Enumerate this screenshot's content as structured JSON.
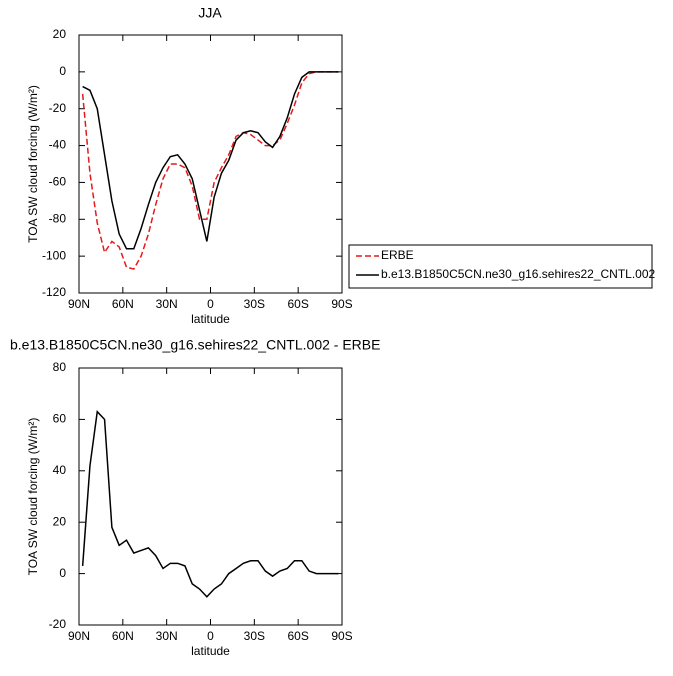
{
  "chart_data": [
    {
      "type": "line",
      "title": "JJA",
      "xlabel": "latitude",
      "ylabel": "TOA SW cloud forcing (W/m²)",
      "x": [
        87.5,
        82.5,
        77.5,
        72.5,
        67.5,
        62.5,
        57.5,
        52.5,
        47.5,
        42.5,
        37.5,
        32.5,
        27.5,
        22.5,
        17.5,
        12.5,
        7.5,
        2.5,
        -2.5,
        -7.5,
        -12.5,
        -17.5,
        -22.5,
        -27.5,
        -32.5,
        -37.5,
        -42.5,
        -47.5,
        -52.5,
        -57.5,
        -62.5,
        -67.5,
        -72.5,
        -77.5,
        -82.5,
        -87.5
      ],
      "series": [
        {
          "name": "ERBE",
          "color": "#e41a1c",
          "dash": true,
          "values": [
            -12,
            -55,
            -82,
            -98,
            -92,
            -95,
            -106,
            -107,
            -100,
            -88,
            -72,
            -58,
            -50,
            -50,
            -52,
            -62,
            -80,
            -80,
            -60,
            -52,
            -45,
            -35,
            -33,
            -34,
            -37,
            -40,
            -40,
            -37,
            -28,
            -18,
            -6,
            -1,
            0,
            0,
            0,
            0
          ]
        },
        {
          "name": "b.e13.B1850C5CN.ne30_g16.sehires22_CNTL.002",
          "color": "#000000",
          "dash": false,
          "values": [
            -8,
            -10,
            -20,
            -45,
            -70,
            -88,
            -96,
            -96,
            -85,
            -72,
            -60,
            -52,
            -46,
            -45,
            -50,
            -58,
            -75,
            -92,
            -68,
            -55,
            -48,
            -37,
            -33,
            -32,
            -33,
            -38,
            -41,
            -35,
            -25,
            -12,
            -3,
            0,
            0,
            0,
            0,
            0
          ]
        }
      ],
      "xlim": [
        90,
        -90
      ],
      "xticks": [
        {
          "value": 90,
          "label": "90N"
        },
        {
          "value": 60,
          "label": "60N"
        },
        {
          "value": 30,
          "label": "30N"
        },
        0,
        {
          "value": -30,
          "label": "30S"
        },
        {
          "value": -60,
          "label": "60S"
        },
        {
          "value": -90,
          "label": "90S"
        }
      ],
      "ylim": [
        -120,
        20
      ],
      "yticks": [
        -120,
        -100,
        -80,
        -60,
        -40,
        -20,
        0,
        20
      ],
      "legend": "right"
    },
    {
      "type": "line",
      "title": "b.e13.B1850C5CN.ne30_g16.sehires22_CNTL.002 - ERBE",
      "xlabel": "latitude",
      "ylabel": "TOA SW cloud forcing (W/m²)",
      "x": [
        87.5,
        82.5,
        77.5,
        72.5,
        67.5,
        62.5,
        57.5,
        52.5,
        47.5,
        42.5,
        37.5,
        32.5,
        27.5,
        22.5,
        17.5,
        12.5,
        7.5,
        2.5,
        -2.5,
        -7.5,
        -12.5,
        -17.5,
        -22.5,
        -27.5,
        -32.5,
        -37.5,
        -42.5,
        -47.5,
        -52.5,
        -57.5,
        -62.5,
        -67.5,
        -72.5,
        -77.5,
        -82.5,
        -87.5
      ],
      "series": [
        {
          "color": "#000000",
          "dash": false,
          "values": [
            3,
            42,
            63,
            60,
            18,
            11,
            13,
            8,
            9,
            10,
            7,
            2,
            4,
            4,
            3,
            -4,
            -6,
            -9,
            -6,
            -4,
            0,
            2,
            4,
            5,
            5,
            1,
            -1,
            1,
            2,
            5,
            5,
            1,
            0,
            0,
            0,
            0
          ]
        }
      ],
      "xlim": [
        90,
        -90
      ],
      "xticks": [
        {
          "value": 90,
          "label": "90N"
        },
        {
          "value": 60,
          "label": "60N"
        },
        {
          "value": 30,
          "label": "30N"
        },
        0,
        {
          "value": -30,
          "label": "30S"
        },
        {
          "value": -60,
          "label": "60S"
        },
        {
          "value": -90,
          "label": "90S"
        }
      ],
      "ylim": [
        -20,
        80
      ],
      "yticks": [
        -20,
        0,
        20,
        40,
        60,
        80
      ]
    }
  ]
}
